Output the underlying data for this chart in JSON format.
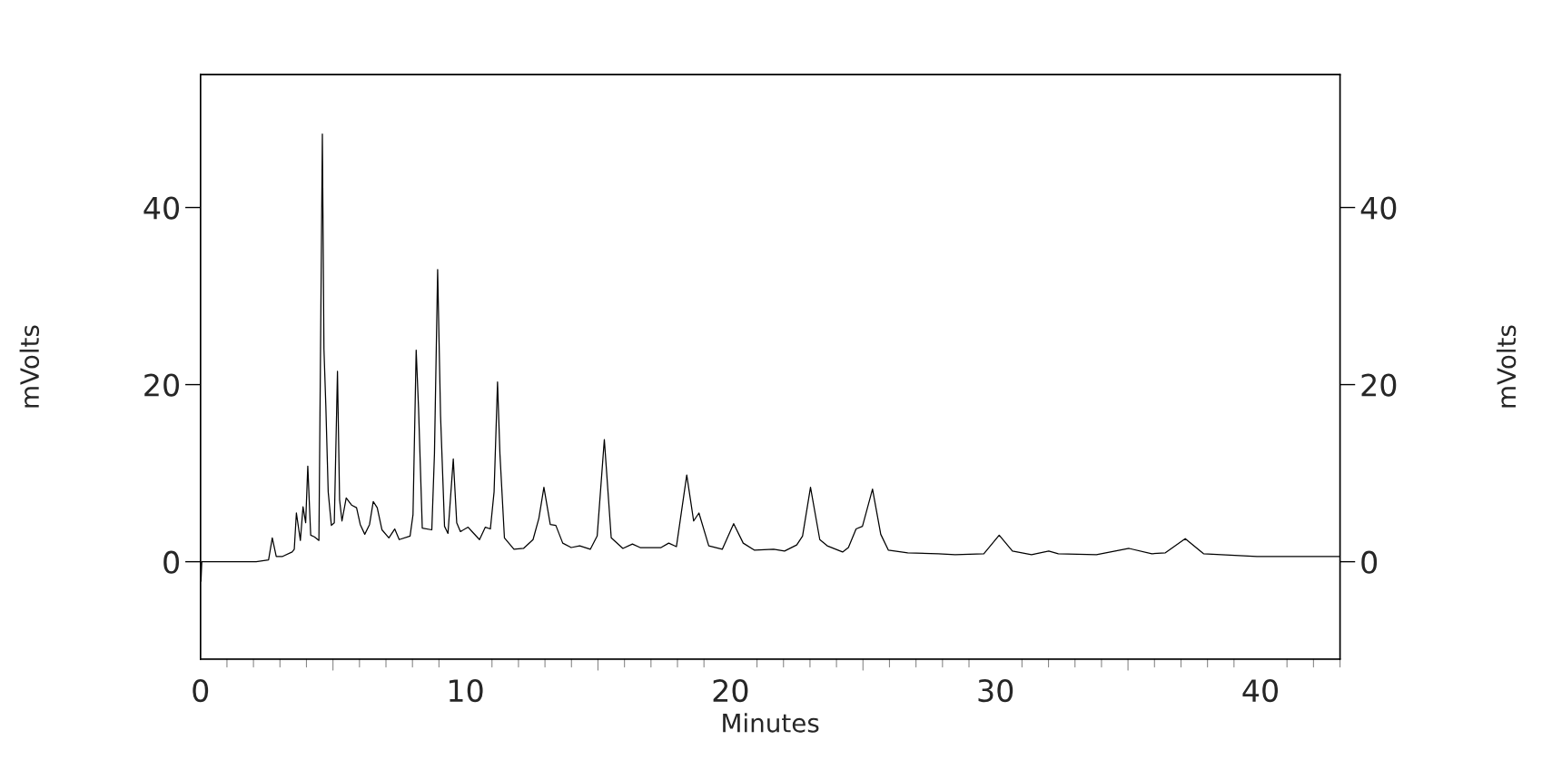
{
  "chart_data": {
    "type": "line",
    "xlabel": "Minutes",
    "ylabel": "mVolts",
    "y2label": "mVolts",
    "xlim": [
      0,
      43
    ],
    "xticks": [
      0,
      10,
      20,
      30,
      40
    ],
    "ylim": [
      -11,
      55
    ],
    "yticks": [
      0,
      20,
      40
    ],
    "y2lim": [
      -11,
      55
    ],
    "y2ticks": [
      0,
      20,
      40
    ],
    "grid": false,
    "legend": false,
    "marker": "none",
    "line_style": "solid",
    "series": [
      {
        "color": "#000000",
        "x": [
          0,
          0.02,
          0.05,
          2.1,
          2.57,
          2.71,
          2.86,
          3.1,
          3.46,
          3.54,
          3.62,
          3.77,
          3.87,
          3.97,
          4.05,
          4.16,
          4.3,
          4.47,
          4.6,
          4.66,
          4.73,
          4.82,
          4.94,
          5.05,
          5.17,
          5.25,
          5.34,
          5.5,
          5.7,
          5.89,
          6.03,
          6.2,
          6.38,
          6.52,
          6.67,
          6.85,
          7.11,
          7.33,
          7.5,
          7.91,
          8.02,
          8.14,
          8.23,
          8.37,
          8.73,
          8.83,
          8.95,
          9.06,
          9.21,
          9.34,
          9.54,
          9.67,
          9.81,
          10.1,
          10.25,
          10.53,
          10.75,
          10.94,
          11.08,
          11.21,
          11.3,
          11.47,
          11.83,
          12.19,
          12.55,
          12.77,
          12.96,
          13.2,
          13.41,
          13.67,
          13.99,
          14.31,
          14.71,
          14.97,
          15.24,
          15.5,
          15.94,
          16.3,
          16.59,
          17.38,
          17.67,
          17.96,
          18.35,
          18.61,
          18.81,
          19.18,
          19.69,
          20.12,
          20.48,
          20.91,
          21.63,
          22.04,
          22.5,
          22.72,
          23.02,
          23.37,
          23.65,
          24.23,
          24.45,
          24.74,
          24.98,
          25.36,
          25.67,
          25.96,
          26.69,
          27.84,
          28.48,
          29.56,
          30.14,
          30.64,
          31.36,
          32.01,
          32.37,
          33.81,
          35.04,
          35.9,
          36.41,
          37.16,
          37.85,
          39.87,
          42.97
        ],
        "values": [
          0,
          -2.2,
          0,
          0,
          0.2,
          2.7,
          0.6,
          0.6,
          1.1,
          1.4,
          5.5,
          2.4,
          6.2,
          4.4,
          10.8,
          3.0,
          2.8,
          2.4,
          48.3,
          24.0,
          17.7,
          7.9,
          4.1,
          4.4,
          21.5,
          7.0,
          4.6,
          7.2,
          6.4,
          6.1,
          4.2,
          3.1,
          4.2,
          6.8,
          6.1,
          3.6,
          2.7,
          3.7,
          2.5,
          2.9,
          5.3,
          23.9,
          17.3,
          3.8,
          3.6,
          12.2,
          33.0,
          16.5,
          4.0,
          3.2,
          11.6,
          4.4,
          3.4,
          3.9,
          3.4,
          2.5,
          3.9,
          3.7,
          7.9,
          20.3,
          12.2,
          2.7,
          1.4,
          1.5,
          2.5,
          4.9,
          8.4,
          4.2,
          4.1,
          2.1,
          1.6,
          1.8,
          1.4,
          2.9,
          13.8,
          2.7,
          1.5,
          2.0,
          1.6,
          1.6,
          2.1,
          1.7,
          9.8,
          4.6,
          5.5,
          1.8,
          1.4,
          4.3,
          2.1,
          1.3,
          1.4,
          1.2,
          1.9,
          2.9,
          8.4,
          2.5,
          1.8,
          1.1,
          1.6,
          3.7,
          4.0,
          8.2,
          3.1,
          1.3,
          1.0,
          0.9,
          0.8,
          0.9,
          3.0,
          1.2,
          0.8,
          1.2,
          0.9,
          0.8,
          1.5,
          0.9,
          1.0,
          2.6,
          0.9,
          0.6,
          0.6
        ]
      }
    ]
  }
}
